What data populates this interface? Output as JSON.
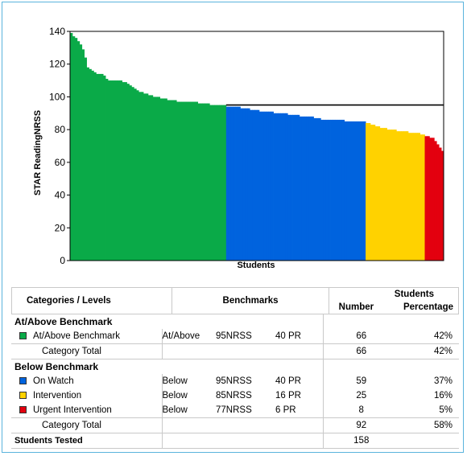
{
  "chart_data": {
    "type": "bar",
    "ylabel": "STAR ReadingNRSS",
    "xlabel": "Students",
    "ylim": [
      0,
      140
    ],
    "yticks": [
      0,
      20,
      40,
      60,
      80,
      100,
      120,
      140
    ],
    "benchmark_line": 95,
    "series": [
      {
        "name": "At/Above Benchmark",
        "color": "#0aaa48",
        "values": [
          139,
          137,
          136,
          134,
          132,
          129,
          124,
          118,
          117,
          116,
          115,
          114,
          114,
          114,
          113,
          111,
          110,
          110,
          110,
          110,
          110,
          110,
          109,
          109,
          108,
          107,
          106,
          105,
          104,
          103,
          103,
          102,
          102,
          101,
          101,
          100,
          100,
          100,
          99,
          99,
          99,
          98,
          98,
          98,
          98,
          97,
          97,
          97,
          97,
          97,
          97,
          97,
          97,
          97,
          96,
          96,
          96,
          96,
          96,
          95,
          95,
          95,
          95,
          95,
          95,
          95
        ]
      },
      {
        "name": "On Watch",
        "color": "#0063de",
        "values": [
          94,
          94,
          94,
          94,
          94,
          94,
          93,
          93,
          93,
          93,
          92,
          92,
          92,
          92,
          91,
          91,
          91,
          91,
          91,
          91,
          90,
          90,
          90,
          90,
          90,
          90,
          89,
          89,
          89,
          89,
          89,
          88,
          88,
          88,
          88,
          88,
          88,
          87,
          87,
          87,
          86,
          86,
          86,
          86,
          86,
          86,
          86,
          86,
          86,
          86,
          85,
          85,
          85,
          85,
          85,
          85,
          85,
          85,
          85
        ]
      },
      {
        "name": "Intervention",
        "color": "#ffd200",
        "values": [
          84,
          84,
          83,
          83,
          82,
          82,
          81,
          81,
          81,
          80,
          80,
          80,
          80,
          79,
          79,
          79,
          79,
          79,
          78,
          78,
          78,
          78,
          78,
          77,
          77
        ]
      },
      {
        "name": "Urgent Intervention",
        "color": "#e3000f",
        "values": [
          76,
          76,
          75,
          75,
          73,
          71,
          69,
          67
        ]
      }
    ]
  },
  "table": {
    "headers": {
      "categories": "Categories / Levels",
      "benchmarks": "Benchmarks",
      "students": "Students",
      "number": "Number",
      "percentage": "Percentage"
    },
    "group_above": "At/Above Benchmark",
    "group_below": "Below Benchmark",
    "rows": [
      {
        "label": "At/Above Benchmark",
        "color": "#0aaa48",
        "relation": "At/Above",
        "nrss": "95NRSS",
        "pr": "40 PR",
        "number": "66",
        "percentage": "42%"
      },
      {
        "label": "On Watch",
        "color": "#0063de",
        "relation": "Below",
        "nrss": "95NRSS",
        "pr": "40 PR",
        "number": "59",
        "percentage": "37%"
      },
      {
        "label": "Intervention",
        "color": "#ffd200",
        "relation": "Below",
        "nrss": "85NRSS",
        "pr": "16 PR",
        "number": "25",
        "percentage": "16%"
      },
      {
        "label": "Urgent Intervention",
        "color": "#e3000f",
        "relation": "Below",
        "nrss": "77NRSS",
        "pr": "6 PR",
        "number": "8",
        "percentage": "5%"
      }
    ],
    "category_total_label": "Category Total",
    "above_total": {
      "number": "66",
      "percentage": "42%"
    },
    "below_total": {
      "number": "92",
      "percentage": "58%"
    },
    "students_tested_label": "Students Tested",
    "students_tested": "158"
  }
}
